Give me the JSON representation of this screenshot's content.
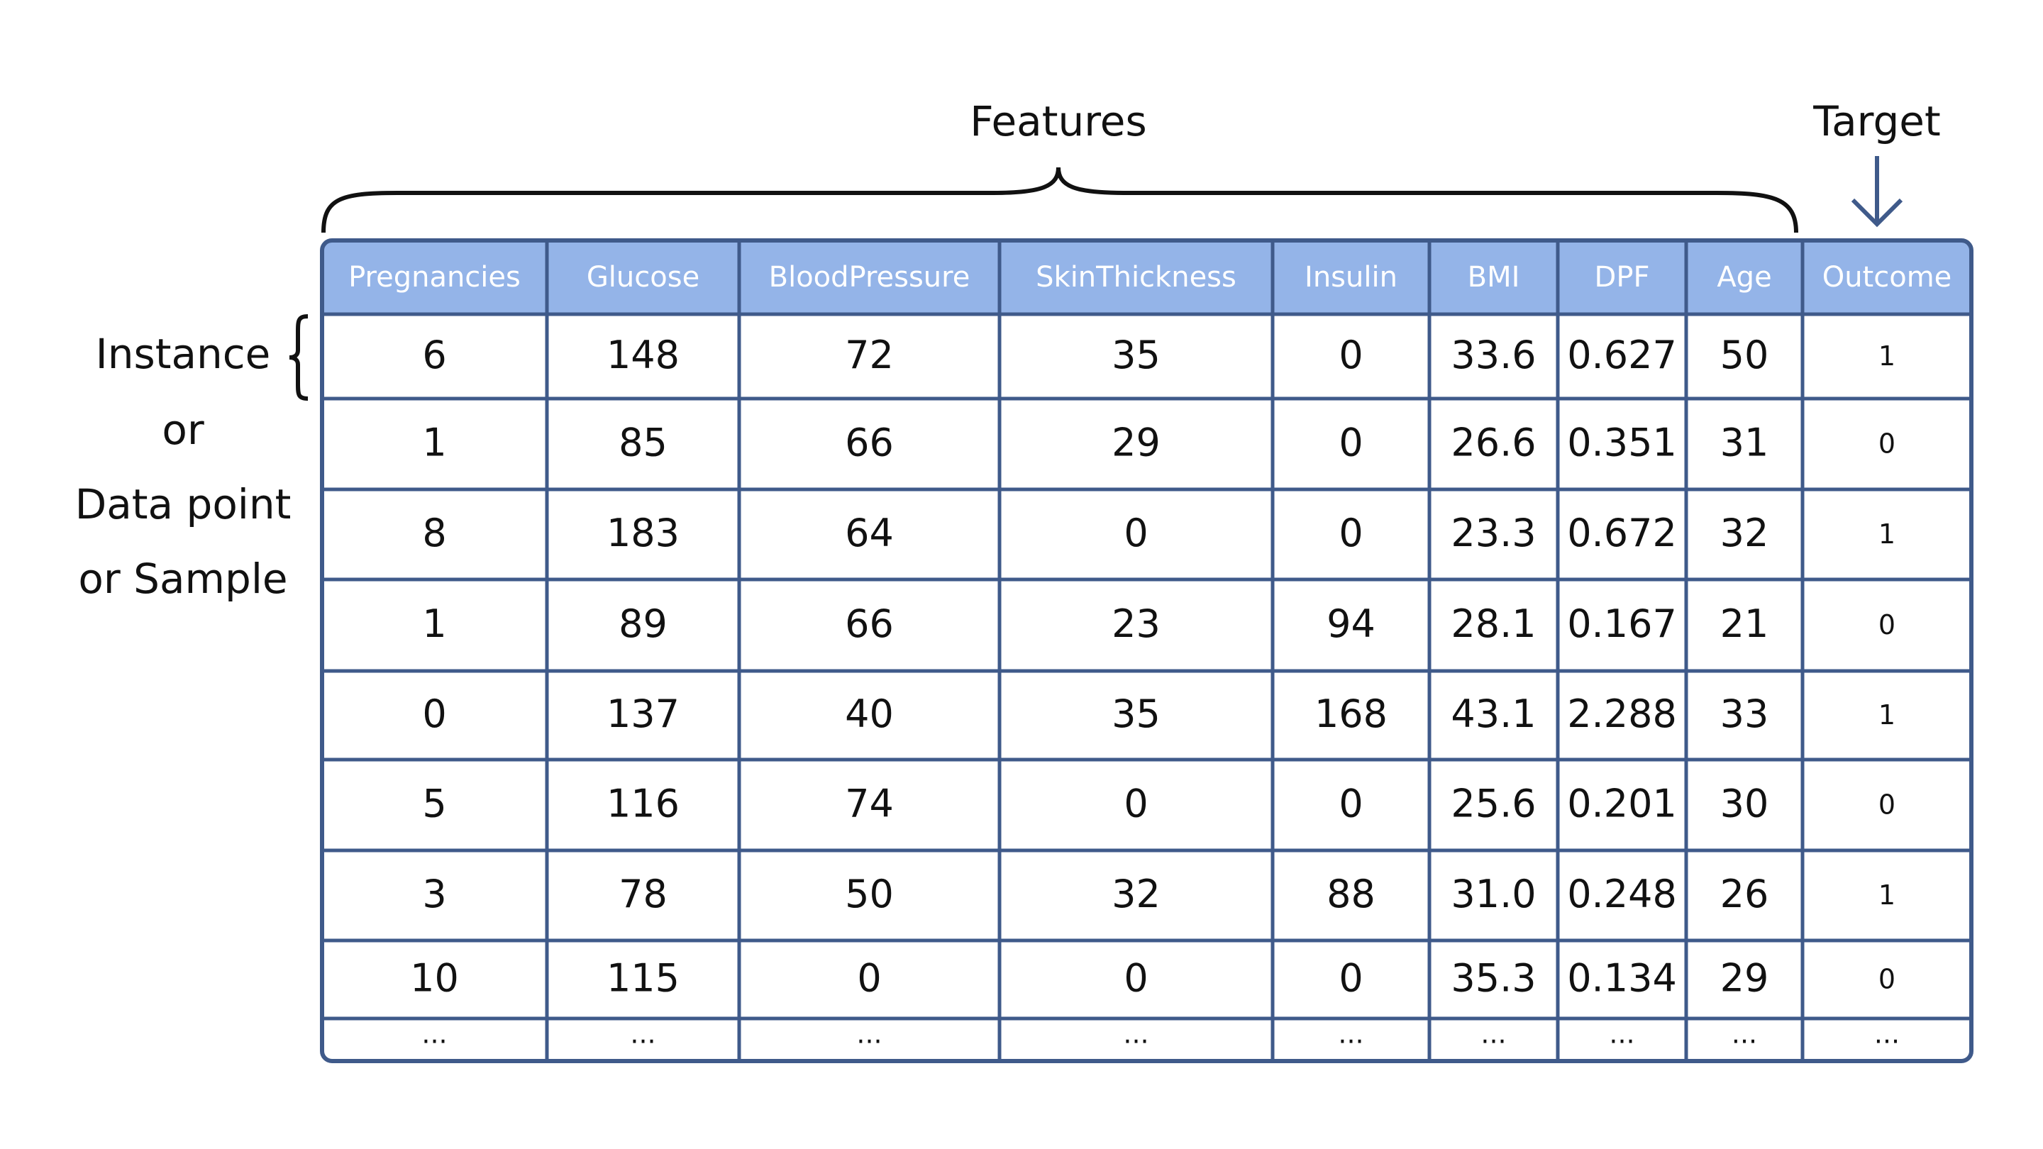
{
  "labels": {
    "features": "Features",
    "target": "Target",
    "instance": [
      "Instance",
      "or",
      "Data point",
      "or Sample"
    ]
  },
  "table": {
    "headers": [
      "Pregnancies",
      "Glucose",
      "BloodPressure",
      "SkinThickness",
      "Insulin",
      "BMI",
      "DPF",
      "Age",
      "Outcome"
    ],
    "rows": [
      [
        "6",
        "148",
        "72",
        "35",
        "0",
        "33.6",
        "0.627",
        "50",
        "1"
      ],
      [
        "1",
        "85",
        "66",
        "29",
        "0",
        "26.6",
        "0.351",
        "31",
        "0"
      ],
      [
        "8",
        "183",
        "64",
        "0",
        "0",
        "23.3",
        "0.672",
        "32",
        "1"
      ],
      [
        "1",
        "89",
        "66",
        "23",
        "94",
        "28.1",
        "0.167",
        "21",
        "0"
      ],
      [
        "0",
        "137",
        "40",
        "35",
        "168",
        "43.1",
        "2.288",
        "33",
        "1"
      ],
      [
        "5",
        "116",
        "74",
        "0",
        "0",
        "25.6",
        "0.201",
        "30",
        "0"
      ],
      [
        "3",
        "78",
        "50",
        "32",
        "88",
        "31.0",
        "0.248",
        "26",
        "1"
      ],
      [
        "10",
        "115",
        "0",
        "0",
        "0",
        "35.3",
        "0.134",
        "29",
        "0"
      ],
      [
        "...",
        "...",
        "...",
        "...",
        "...",
        "...",
        "...",
        "...",
        "..."
      ]
    ]
  }
}
